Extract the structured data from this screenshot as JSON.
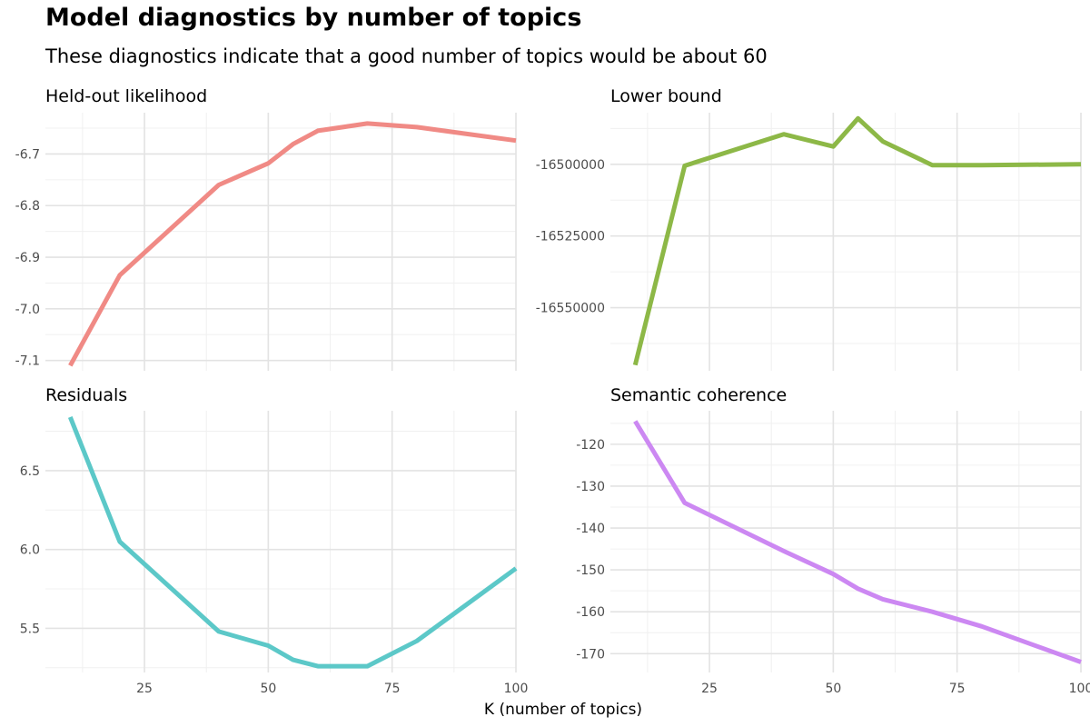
{
  "title": "Model diagnostics by number of topics",
  "subtitle": "These diagnostics indicate that a good number of topics would be about 60",
  "chart_data": {
    "type": "line",
    "xlabel": "K (number of topics)",
    "x": [
      10,
      20,
      40,
      50,
      55,
      60,
      70,
      80,
      100
    ],
    "x_ticks": [
      25,
      50,
      75,
      100
    ],
    "xlim": [
      5,
      100
    ],
    "grid": true,
    "legend": "none",
    "panels": [
      {
        "name": "Held-out likelihood",
        "color": "#F08A85",
        "values": [
          -7.11,
          -6.935,
          -6.76,
          -6.718,
          -6.681,
          -6.655,
          -6.641,
          -6.648,
          -6.674
        ],
        "ylim": [
          -7.12,
          -6.62
        ],
        "y_ticks": [
          -7.1,
          -7.0,
          -6.9,
          -6.8,
          -6.7
        ],
        "y_tick_labels": [
          "-7.1",
          "-7.0",
          "-6.9",
          "-6.8",
          "-6.7"
        ]
      },
      {
        "name": "Lower bound",
        "color": "#8DB847",
        "values": [
          -16570000,
          -16500500,
          -16489500,
          -16493800,
          -16484000,
          -16492000,
          -16500300,
          -16500300,
          -16500000
        ],
        "ylim": [
          -16572000,
          -16482000
        ],
        "y_ticks": [
          -16550000,
          -16525000,
          -16500000
        ],
        "y_tick_labels": [
          "-16550000",
          "-16525000",
          "-16500000"
        ]
      },
      {
        "name": "Residuals",
        "color": "#5CC8C8",
        "values": [
          6.84,
          6.05,
          5.48,
          5.39,
          5.3,
          5.26,
          5.26,
          5.42,
          5.88
        ],
        "ylim": [
          5.22,
          6.88
        ],
        "y_ticks": [
          5.5,
          6.0,
          6.5
        ],
        "y_tick_labels": [
          "5.5",
          "6.0",
          "6.5"
        ]
      },
      {
        "name": "Semantic coherence",
        "color": "#CC88F2",
        "values": [
          -114.5,
          -134,
          -145.5,
          -151,
          -154.5,
          -157,
          -160,
          -163.5,
          -172
        ],
        "ylim": [
          -174.5,
          -112
        ],
        "y_ticks": [
          -170,
          -160,
          -150,
          -140,
          -130,
          -120
        ],
        "y_tick_labels": [
          "-170",
          "-160",
          "-150",
          "-140",
          "-130",
          "-120"
        ]
      }
    ]
  }
}
